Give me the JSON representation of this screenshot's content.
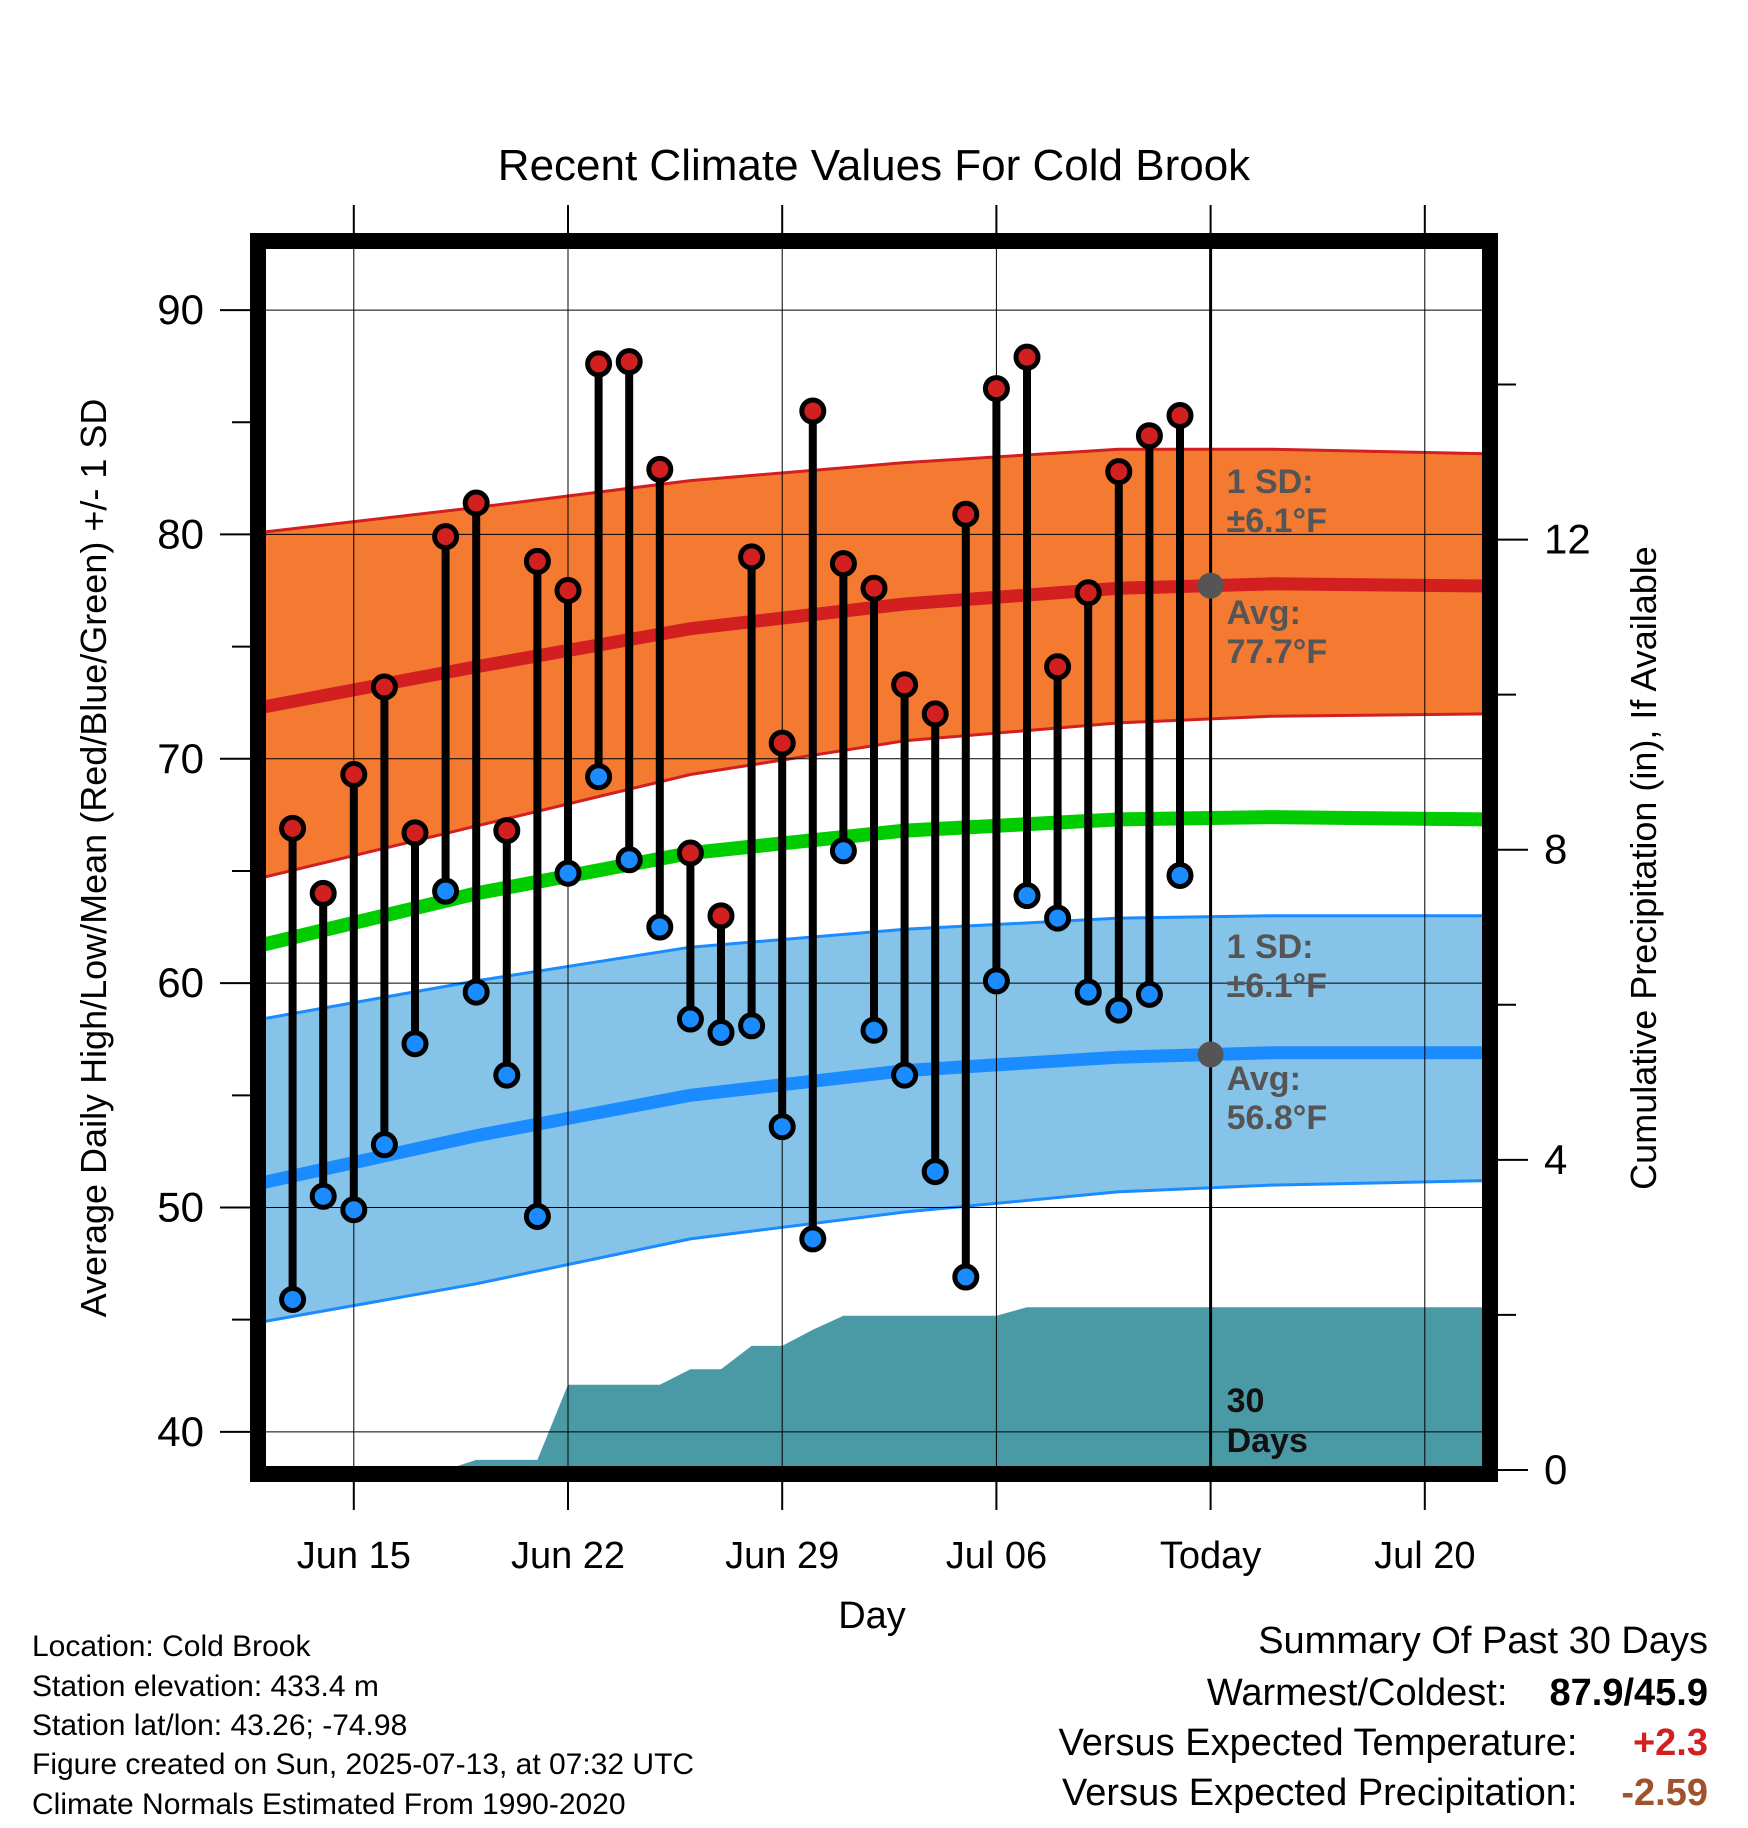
{
  "chart_data": {
    "type": "line",
    "title": "Recent Climate Values For Cold Brook",
    "xlabel": "Day",
    "ylabel": "Average Daily High/Low/Mean (Red/Blue/Green) +/- 1 SD",
    "y2label": "Cumulative Precipitation (in), If Available",
    "ylim": [
      38.3,
      92.9
    ],
    "y2lim": [
      0,
      15.8
    ],
    "yticks": [
      40,
      50,
      60,
      70,
      80,
      90
    ],
    "y2ticks": [
      0,
      4,
      8,
      12
    ],
    "x_range": [
      "2025-06-12",
      "2025-07-22"
    ],
    "xtick_labels": [
      {
        "date": "2025-06-15",
        "label": "Jun 15"
      },
      {
        "date": "2025-06-22",
        "label": "Jun 22"
      },
      {
        "date": "2025-06-29",
        "label": "Jun 29"
      },
      {
        "date": "2025-07-06",
        "label": "Jul 06"
      },
      {
        "date": "2025-07-13",
        "label": "Today"
      },
      {
        "date": "2025-07-20",
        "label": "Jul 20"
      }
    ],
    "today": "2025-07-13",
    "daily": {
      "dates": [
        "2025-06-13",
        "2025-06-14",
        "2025-06-15",
        "2025-06-16",
        "2025-06-17",
        "2025-06-18",
        "2025-06-19",
        "2025-06-20",
        "2025-06-21",
        "2025-06-22",
        "2025-06-23",
        "2025-06-24",
        "2025-06-25",
        "2025-06-26",
        "2025-06-27",
        "2025-06-28",
        "2025-06-29",
        "2025-06-30",
        "2025-07-01",
        "2025-07-02",
        "2025-07-03",
        "2025-07-04",
        "2025-07-05",
        "2025-07-06",
        "2025-07-07",
        "2025-07-08",
        "2025-07-09",
        "2025-07-10",
        "2025-07-11",
        "2025-07-12"
      ],
      "highs": [
        66.9,
        64.0,
        69.3,
        73.2,
        66.7,
        79.9,
        81.4,
        66.8,
        78.8,
        77.5,
        87.6,
        87.7,
        82.9,
        65.8,
        63.0,
        79.0,
        70.7,
        85.5,
        78.7,
        77.6,
        73.3,
        72.0,
        80.9,
        86.5,
        87.9,
        74.1,
        77.4,
        82.8,
        84.4,
        85.3
      ],
      "lows": [
        45.9,
        50.5,
        49.9,
        52.8,
        57.3,
        64.1,
        59.6,
        55.9,
        49.6,
        64.9,
        69.2,
        65.5,
        62.5,
        58.4,
        57.8,
        58.1,
        53.6,
        48.6,
        65.9,
        57.9,
        55.9,
        51.6,
        46.9,
        60.1,
        63.9,
        62.9,
        59.6,
        58.8,
        59.5,
        64.8
      ]
    },
    "normals": {
      "dates": [
        "2025-06-12",
        "2025-06-19",
        "2025-06-26",
        "2025-07-03",
        "2025-07-10",
        "2025-07-15",
        "2025-07-22"
      ],
      "avg_high": [
        72.3,
        74.1,
        75.8,
        76.9,
        77.6,
        77.8,
        77.7
      ],
      "avg_high_upper": [
        80.1,
        81.2,
        82.4,
        83.2,
        83.8,
        83.8,
        83.6
      ],
      "avg_high_lower": [
        64.7,
        67.0,
        69.3,
        70.8,
        71.6,
        71.9,
        72.0
      ],
      "avg_mean": [
        61.7,
        64.0,
        65.8,
        66.8,
        67.3,
        67.4,
        67.3
      ],
      "avg_low": [
        51.1,
        53.2,
        55.0,
        56.1,
        56.7,
        56.9,
        56.9
      ],
      "avg_low_upper": [
        58.4,
        60.1,
        61.6,
        62.4,
        62.9,
        63.0,
        63.0
      ],
      "avg_low_lower": [
        44.9,
        46.6,
        48.6,
        49.8,
        50.7,
        51.0,
        51.2
      ]
    },
    "precip": {
      "dates": [
        "2025-06-12",
        "2025-06-18",
        "2025-06-19",
        "2025-06-21",
        "2025-06-22",
        "2025-06-25",
        "2025-06-26",
        "2025-06-27",
        "2025-06-28",
        "2025-06-29",
        "2025-06-30",
        "2025-07-01",
        "2025-07-03",
        "2025-07-06",
        "2025-07-07",
        "2025-07-22"
      ],
      "values": [
        0,
        0,
        0.13,
        0.13,
        1.1,
        1.1,
        1.3,
        1.3,
        1.6,
        1.6,
        1.81,
        1.99,
        1.99,
        1.99,
        2.1,
        2.1
      ]
    },
    "annotations": {
      "high_sd": "1 SD:",
      "high_sd_value": "±6.1°F",
      "high_avg": "Avg:",
      "high_avg_value": "77.7°F",
      "low_sd": "1 SD:",
      "low_sd_value": "±6.1°F",
      "low_avg": "Avg:",
      "low_avg_value": "56.8°F",
      "precip_days_line1": "30",
      "precip_days_line2": "Days"
    },
    "colors": {
      "high_band": "#f47a32",
      "high_line": "#d21f1f",
      "low_band": "#86c3e8",
      "low_line": "#1a8cff",
      "mean_line": "#00cc00",
      "precip": "#4a9aa5",
      "high_dot": "#d21f1f",
      "low_dot": "#1a8cff",
      "annotation": "#555555"
    }
  },
  "info": {
    "location": "Location: Cold Brook",
    "elevation": "Station elevation: 433.4 m",
    "latlon": "Station lat/lon: 43.26; -74.98",
    "created": "Figure created on Sun, 2025-07-13, at 07:32 UTC",
    "normals": "Climate Normals Estimated From 1990-2020"
  },
  "summary": {
    "heading": "Summary Of Past 30 Days",
    "warm_cold_label": "Warmest/Coldest:",
    "warm_cold_value": "87.9/45.9",
    "temp_label": "Versus Expected Temperature:",
    "temp_value": "+2.3",
    "temp_color": "#d21f1f",
    "precip_label": "Versus Expected Precipitation:",
    "precip_value": "-2.59",
    "precip_color": "#a0522d"
  }
}
